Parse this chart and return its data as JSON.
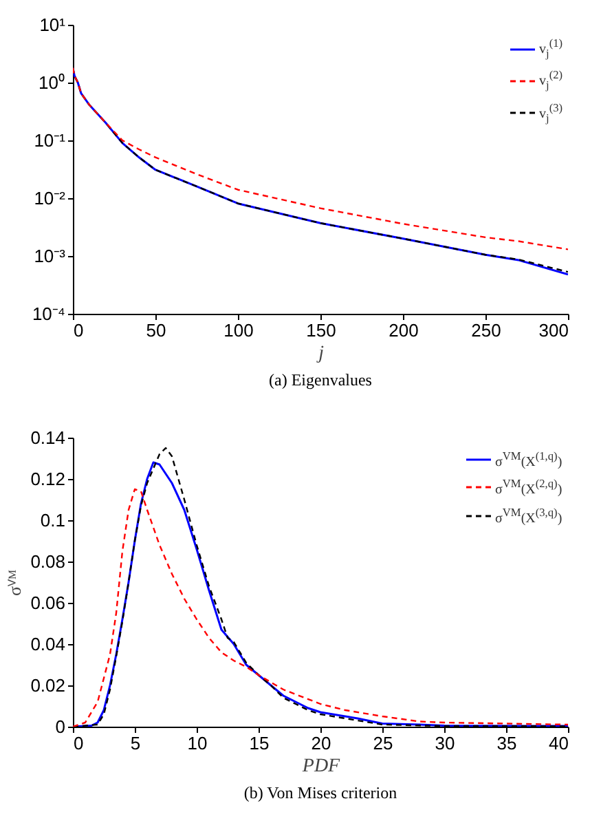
{
  "chart_data": [
    {
      "type": "line",
      "title": "(a)  Eigenvalues",
      "xlabel": "j",
      "log": "y",
      "legend": "top right",
      "xlim": [
        0,
        300
      ],
      "xticks": [
        0,
        50,
        100,
        150,
        200,
        250,
        300
      ],
      "ylim": [
        0.0001,
        10
      ],
      "yticks": [
        {
          "value": 0.0001,
          "label": "10⁻⁴"
        },
        {
          "value": 0.001,
          "label": "10⁻³"
        },
        {
          "value": 0.01,
          "label": "10⁻²"
        },
        {
          "value": 0.1,
          "label": "10⁻¹"
        },
        {
          "value": 1,
          "label": "10⁰"
        },
        {
          "value": 10,
          "label": "10¹"
        }
      ],
      "grid": false,
      "x": [
        0,
        1,
        3,
        5,
        10,
        20,
        30,
        40,
        50,
        75,
        100,
        150,
        200,
        250,
        270,
        300
      ],
      "series": [
        {
          "name": "v$_{j}$$^{(1)}$",
          "color": "#0000ff",
          "line_style": "solid",
          "values": [
            1.8,
            1.3,
            1.0,
            0.65,
            0.41,
            0.2,
            0.09,
            0.051,
            0.031,
            0.016,
            0.0081,
            0.0037,
            0.002,
            0.00105,
            0.00085,
            0.00048
          ]
        },
        {
          "name": "v$_{j}$$^{(2)}$",
          "color": "#ff0000",
          "line_style": "dashed",
          "values": [
            1.8,
            1.3,
            1.0,
            0.65,
            0.41,
            0.2,
            0.1,
            0.07,
            0.051,
            0.026,
            0.014,
            0.0067,
            0.0036,
            0.0021,
            0.0018,
            0.0013
          ]
        },
        {
          "name": "v$_{j}$$^{(3)}$",
          "color": "#000000",
          "line_style": "dashed",
          "values": [
            1.8,
            1.3,
            1.0,
            0.65,
            0.41,
            0.2,
            0.09,
            0.051,
            0.031,
            0.016,
            0.0081,
            0.0037,
            0.002,
            0.00105,
            0.00087,
            0.00053
          ]
        }
      ]
    },
    {
      "type": "line",
      "title": "(b)  Von Mises criterion",
      "xlabel": "PDF",
      "ylabel": "σⱽᴹ",
      "legend": "top right",
      "xlim": [
        0,
        40
      ],
      "xticks": [
        0,
        5,
        10,
        15,
        20,
        25,
        30,
        35,
        40
      ],
      "ylim": [
        0,
        0.14
      ],
      "yticks": [
        0,
        0.02,
        0.04,
        0.06,
        0.08,
        0.1,
        0.12,
        0.14
      ],
      "grid": false,
      "series": [
        {
          "name": "σ$^{VM}$(X$^{(1,q)}$)",
          "color": "#0000ff",
          "line_style": "solid",
          "x": [
            0,
            1.5,
            2,
            2.5,
            3,
            3.5,
            4,
            4.5,
            5,
            5.5,
            6,
            6.5,
            7,
            8,
            9,
            10,
            11,
            12,
            13,
            14,
            15,
            16,
            17,
            18,
            19,
            20,
            22,
            23,
            25,
            28,
            30,
            40
          ],
          "values": [
            0,
            0.0005,
            0.002,
            0.008,
            0.02,
            0.035,
            0.052,
            0.07,
            0.09,
            0.108,
            0.12,
            0.128,
            0.127,
            0.118,
            0.105,
            0.086,
            0.066,
            0.047,
            0.04,
            0.03,
            0.025,
            0.02,
            0.015,
            0.012,
            0.009,
            0.007,
            0.005,
            0.004,
            0.0015,
            0.001,
            0.0005,
            0.0003
          ]
        },
        {
          "name": "σ$^{VM}$(X$^{(2,q)}$)",
          "color": "#ff0000",
          "line_style": "dashed",
          "x": [
            0,
            1,
            2,
            3,
            3.5,
            4,
            4.5,
            5,
            5.5,
            6,
            7,
            8,
            9,
            10,
            11,
            12,
            13,
            14,
            15,
            17,
            20,
            22,
            25,
            28,
            30,
            40
          ],
          "values": [
            0,
            0.002,
            0.012,
            0.035,
            0.055,
            0.085,
            0.105,
            0.115,
            0.114,
            0.105,
            0.088,
            0.074,
            0.062,
            0.052,
            0.043,
            0.036,
            0.032,
            0.029,
            0.025,
            0.018,
            0.011,
            0.008,
            0.005,
            0.0025,
            0.002,
            0.001
          ]
        },
        {
          "name": "σ$^{VM}$(X$^{(3,q)}$)",
          "color": "#000000",
          "line_style": "dashed",
          "x": [
            0,
            2,
            2.5,
            3,
            3.5,
            4,
            4.5,
            5,
            5.5,
            6,
            6.5,
            7,
            7.5,
            8,
            9,
            10,
            11,
            12,
            12.5,
            13,
            14,
            15,
            16,
            17,
            18,
            19,
            20,
            22,
            25,
            30,
            40
          ],
          "values": [
            0,
            0.001,
            0.006,
            0.018,
            0.034,
            0.051,
            0.07,
            0.09,
            0.107,
            0.118,
            0.125,
            0.132,
            0.135,
            0.131,
            0.11,
            0.088,
            0.068,
            0.052,
            0.043,
            0.041,
            0.031,
            0.025,
            0.02,
            0.014,
            0.011,
            0.008,
            0.006,
            0.004,
            0.001,
            0.0003,
            0.0002
          ]
        }
      ]
    }
  ]
}
